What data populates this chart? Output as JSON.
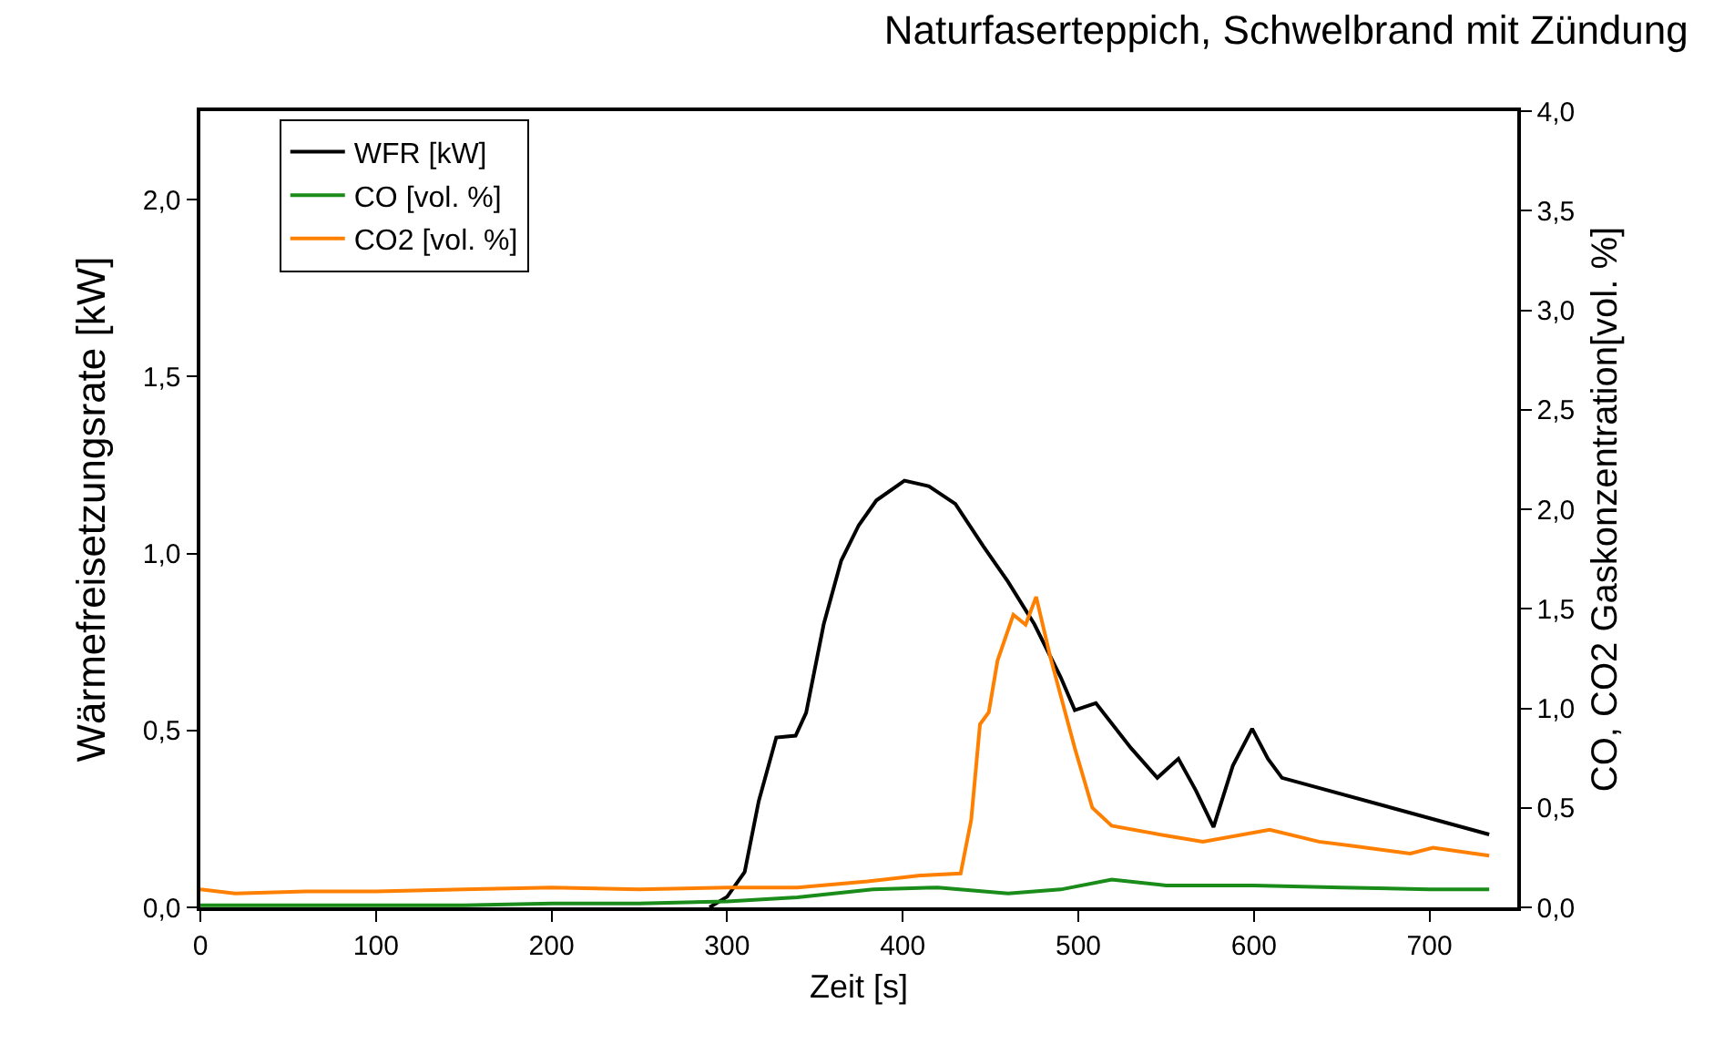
{
  "chart_data": {
    "type": "line",
    "title": "Naturfaserteppich, Schwelbrand mit Zündung",
    "xlabel": "Zeit [s]",
    "ylabel": "Wärmefreisetzungsrate [kW]",
    "y2label": "CO, CO2 Gaskonzentration[vol. %]",
    "xlim": [
      0,
      750
    ],
    "xticks": [
      {
        "value": 0,
        "label": "0"
      },
      {
        "value": 100,
        "label": "100"
      },
      {
        "value": 200,
        "label": "200"
      },
      {
        "value": 300,
        "label": "300"
      },
      {
        "value": 400,
        "label": "400"
      },
      {
        "value": 500,
        "label": "500"
      },
      {
        "value": 600,
        "label": "600"
      },
      {
        "value": 700,
        "label": "700"
      }
    ],
    "ylim": [
      0,
      2.25
    ],
    "yticks": [
      {
        "value": 0,
        "label": "0,0"
      },
      {
        "value": 0.5,
        "label": "0,5"
      },
      {
        "value": 1,
        "label": "1,0"
      },
      {
        "value": 1.5,
        "label": "1,5"
      },
      {
        "value": 2,
        "label": "2,0"
      }
    ],
    "y2lim": [
      0,
      4
    ],
    "y2ticks": [
      {
        "value": 0,
        "label": "0,0"
      },
      {
        "value": 0.5,
        "label": "0,5"
      },
      {
        "value": 1,
        "label": "1,0"
      },
      {
        "value": 1.5,
        "label": "1,5"
      },
      {
        "value": 2,
        "label": "2,0"
      },
      {
        "value": 2.5,
        "label": "2,5"
      },
      {
        "value": 3,
        "label": "3,0"
      },
      {
        "value": 3.5,
        "label": "3,5"
      },
      {
        "value": 4,
        "label": "4,0"
      }
    ],
    "legend": "top left",
    "marker": "none",
    "line_style": "solid",
    "series": [
      {
        "name": "WFR [kW]",
        "color": "#000000",
        "x": [
          290,
          300,
          310,
          318,
          328,
          339,
          345,
          355,
          365,
          375,
          385,
          401,
          415,
          430,
          446,
          460,
          475,
          490,
          498,
          510,
          530,
          545,
          557,
          567,
          577,
          588,
          599,
          608,
          616,
          734
        ],
        "values": [
          0,
          0.03,
          0.1,
          0.3,
          0.48,
          0.485,
          0.55,
          0.8,
          0.98,
          1.08,
          1.15,
          1.206,
          1.19,
          1.14,
          1.02,
          0.92,
          0.8,
          0.65,
          0.557,
          0.577,
          0.45,
          0.366,
          0.42,
          0.33,
          0.227,
          0.4,
          0.505,
          0.42,
          0.366,
          0.206
        ]
      },
      {
        "name": "CO [vol. %]",
        "color": "#1a8c1a",
        "axis": "y2",
        "x": [
          0,
          50,
          100,
          150,
          200,
          250,
          300,
          340,
          383,
          420,
          460,
          490,
          519,
          550,
          600,
          650,
          700,
          734
        ],
        "values": [
          0.01,
          0.01,
          0.01,
          0.01,
          0.02,
          0.02,
          0.03,
          0.05,
          0.09,
          0.1,
          0.07,
          0.09,
          0.14,
          0.11,
          0.11,
          0.1,
          0.09,
          0.09
        ]
      },
      {
        "name": "CO2 [vol. %]",
        "color": "#ff8000",
        "axis": "y2",
        "x": [
          0,
          20,
          60,
          100,
          150,
          200,
          250,
          300,
          340,
          380,
          410,
          433,
          439,
          444,
          449,
          454,
          463,
          470,
          476,
          484,
          498,
          508,
          519,
          550,
          571,
          609,
          637,
          655,
          689,
          702,
          734
        ],
        "values": [
          0.09,
          0.07,
          0.08,
          0.08,
          0.09,
          0.1,
          0.09,
          0.1,
          0.1,
          0.13,
          0.16,
          0.17,
          0.44,
          0.92,
          0.98,
          1.24,
          1.47,
          1.42,
          1.56,
          1.26,
          0.8,
          0.5,
          0.41,
          0.36,
          0.33,
          0.39,
          0.33,
          0.31,
          0.27,
          0.3,
          0.26
        ]
      }
    ]
  }
}
